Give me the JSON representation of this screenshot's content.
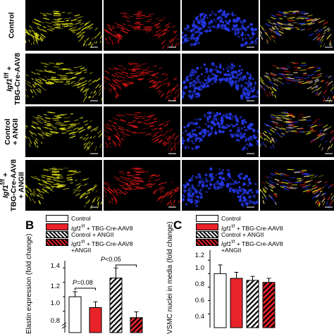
{
  "panel_a": {
    "rows": [
      {
        "label": "Control"
      },
      {
        "label_html": "<i>Igf1</i><sup>f/f</sup> +<br>TBG-Cre-AAV8"
      },
      {
        "label_html": "Control<br>+ ANGII"
      },
      {
        "label_html": "<i>Igf1</i><sup>f/f</sup> +<br>TBG-Cre-AAV8<br>+ ANGII"
      }
    ],
    "channel_colors": [
      "#e6e619",
      "#e01818",
      "#2438e8",
      "merge"
    ]
  },
  "legend": {
    "control": "Control",
    "igf1_a": "Igf1",
    "igf1_sup": "f/f",
    "tbg": " + TBG-Cre-AAV8",
    "control_angii": "Control + ANGII",
    "angii_line": "+ANGII",
    "colors": {
      "control": "#ffffff",
      "igf1": "#e8232a",
      "hatch": "#e8232a"
    }
  },
  "panel_b": {
    "letter": "B",
    "ylabel": "Elastin expression (fold change)",
    "ticks": [
      "1.4",
      "1.2",
      "1.0",
      "0.8"
    ],
    "pvals": [
      "P=0.08",
      "P<0.05"
    ]
  },
  "panel_c": {
    "letter": "C",
    "ylabel": "VSMC nuclei in media (fold change)",
    "ticks": [
      "1.2",
      "1.0",
      "0.8",
      "0.6",
      "0.4"
    ]
  },
  "chart_data": [
    {
      "type": "bar",
      "ylabel": "Elastin expression (fold change)",
      "categories": [
        "Control",
        "Igf1 f/f + TBG-Cre-AAV8",
        "Control + ANGII",
        "Igf1 f/f + TBG-Cre-AAV8 +ANGII"
      ],
      "values": [
        1.0,
        0.85,
        1.26,
        0.71
      ],
      "errors": [
        0.07,
        0.08,
        0.14,
        0.08
      ],
      "ylim": [
        0.6,
        1.5
      ]
    },
    {
      "type": "bar",
      "ylabel": "VSMC nuclei in media (fold change)",
      "categories": [
        "Control",
        "Igf1 f/f + TBG-Cre-AAV8",
        "Control + ANGII",
        "Igf1 f/f + TBG-Cre-AAV8 +ANGII"
      ],
      "values": [
        1.0,
        0.93,
        0.9,
        0.87
      ],
      "errors": [
        0.13,
        0.09,
        0.06,
        0.06
      ],
      "ylim": [
        0.3,
        1.35
      ]
    }
  ]
}
